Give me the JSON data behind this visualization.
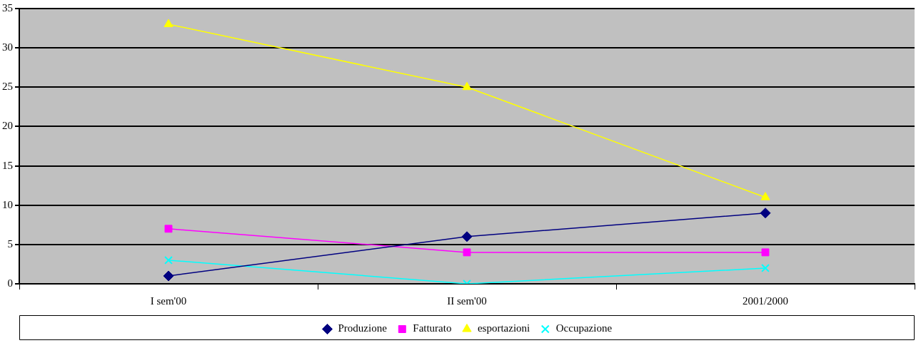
{
  "chart_data": {
    "type": "line",
    "categories": [
      "I sem'00",
      "II sem'00",
      "2001/2000"
    ],
    "series": [
      {
        "name": "Produzione",
        "color": "#000080",
        "marker": "diamond",
        "values": [
          1,
          6,
          9
        ]
      },
      {
        "name": "Fatturato",
        "color": "#ff00ff",
        "marker": "square",
        "values": [
          7,
          4,
          4
        ]
      },
      {
        "name": "esportazioni",
        "color": "#ffff00",
        "marker": "triangle",
        "values": [
          33,
          25,
          11
        ]
      },
      {
        "name": "Occupazione",
        "color": "#00ffff",
        "marker": "cross",
        "values": [
          3,
          0,
          2
        ]
      }
    ],
    "ylim": [
      0,
      35
    ],
    "yticks": [
      0,
      5,
      10,
      15,
      20,
      25,
      30,
      35
    ],
    "grid": "y",
    "legend": "bottom"
  }
}
